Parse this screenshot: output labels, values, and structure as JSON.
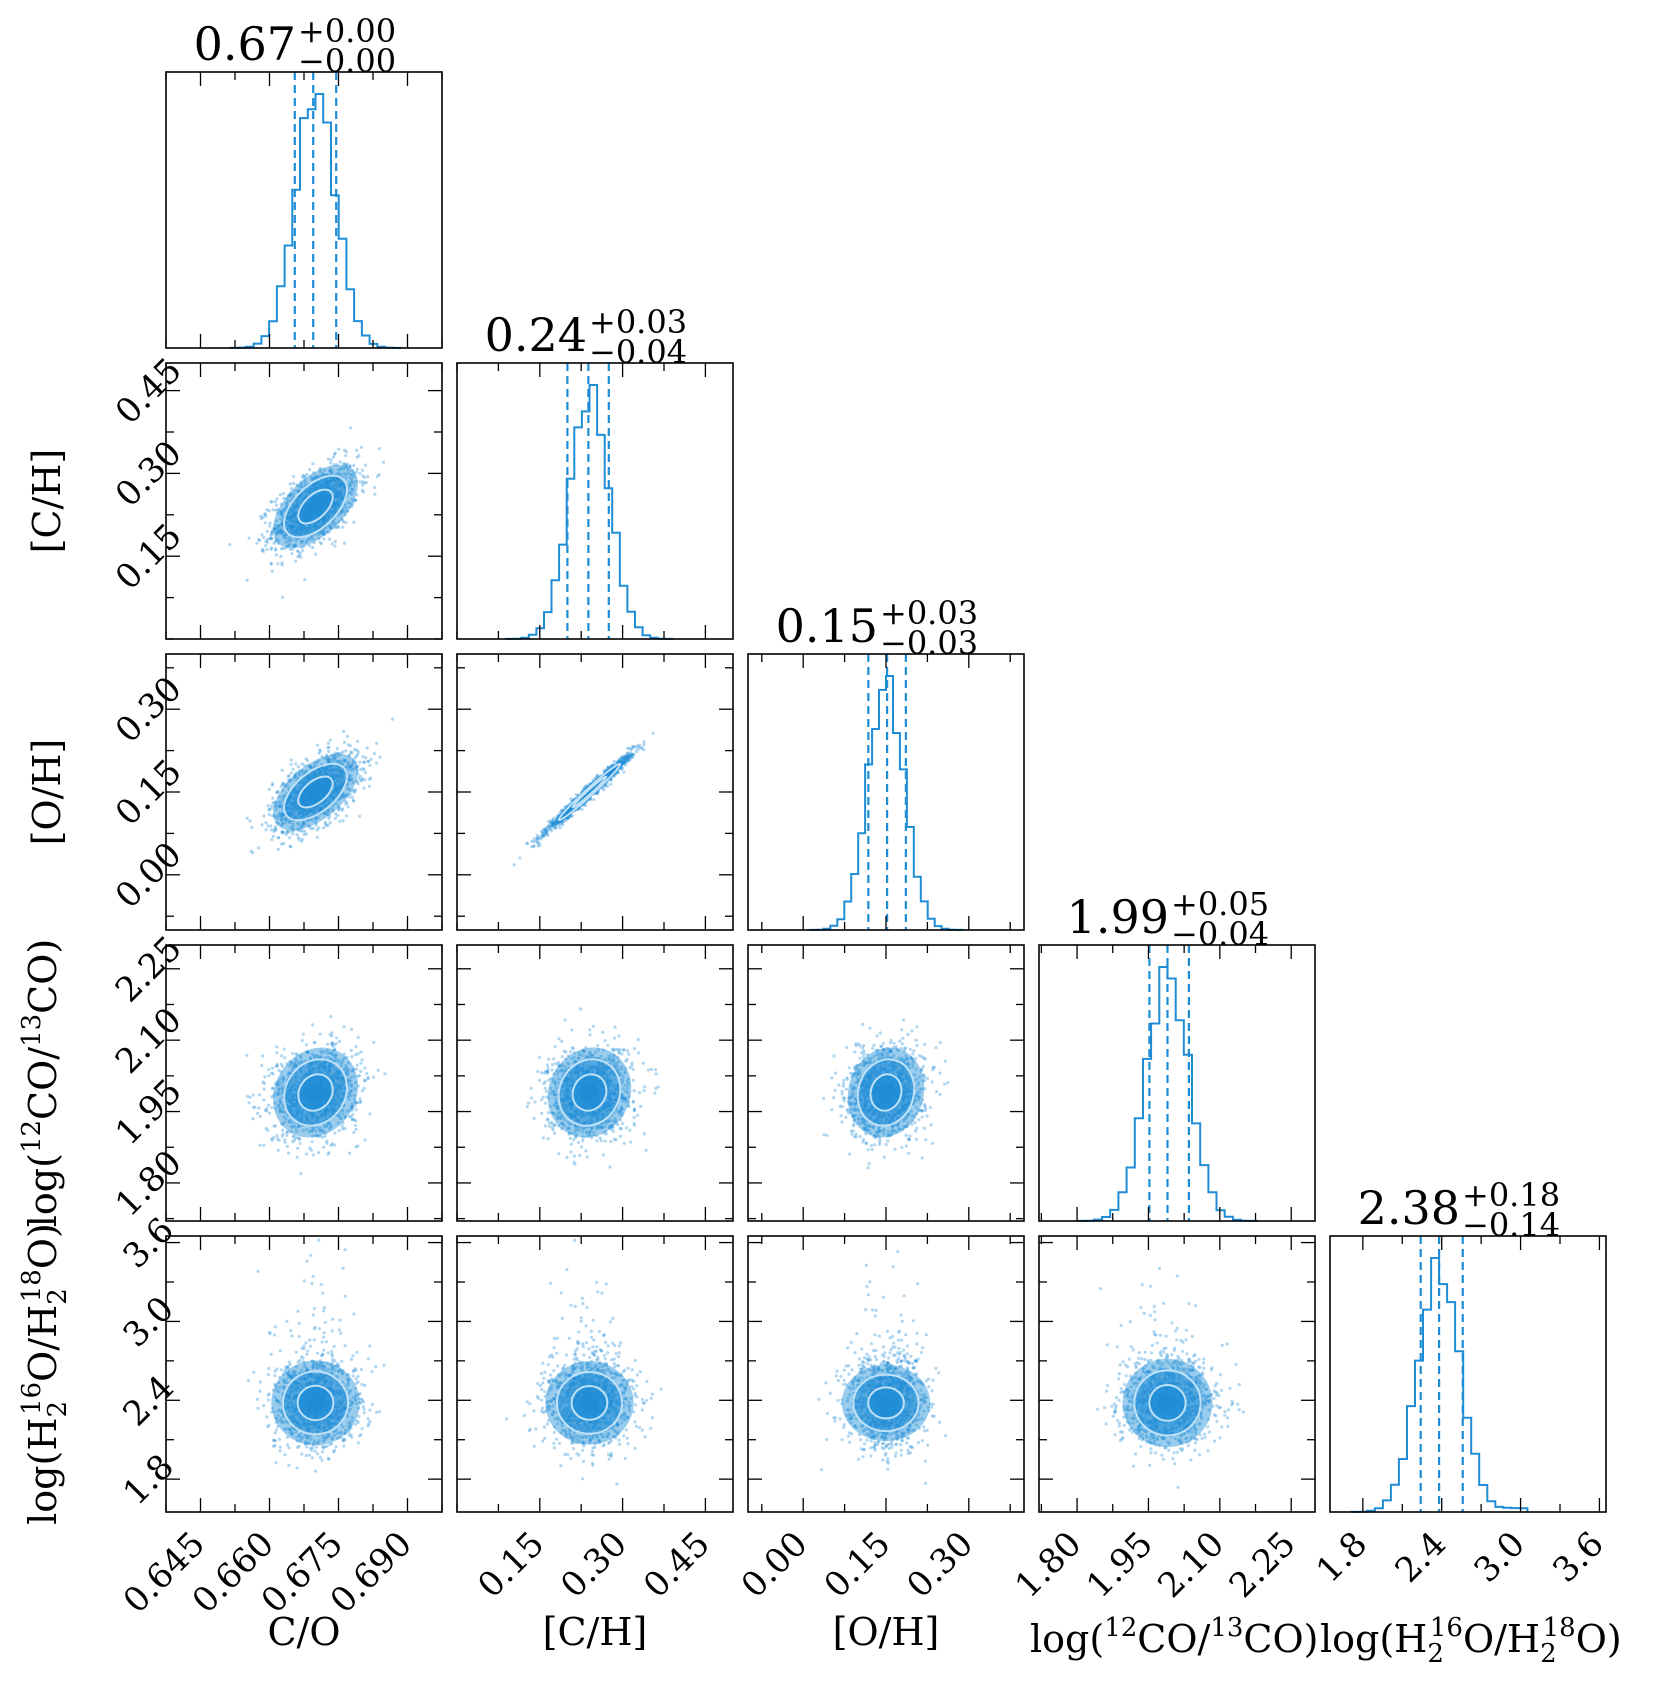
{
  "colors": {
    "accent": "#1f8dd6",
    "axis": "#000000"
  },
  "chart_data": {
    "type": "corner",
    "parameters": [
      {
        "name": "C/O",
        "label": "C/O",
        "median": 0.67,
        "plus": 0.0,
        "minus": 0.0,
        "title_main": "0.67",
        "title_plus": "+0.00",
        "title_minus": "−0.00",
        "range": [
          0.6375,
          0.6975
        ],
        "ticks": [
          0.645,
          0.66,
          0.675,
          0.69
        ],
        "tick_labels": [
          "0.645",
          "0.660",
          "0.675",
          "0.690"
        ],
        "quantiles": [
          0.6655,
          0.6695,
          0.6745
        ],
        "sd": 0.0044
      },
      {
        "name": "[C/H]",
        "label": "[C/H]",
        "median": 0.24,
        "plus": 0.03,
        "minus": 0.04,
        "title_main": "0.24",
        "title_plus": "+0.03",
        "title_minus": "−0.04",
        "range": [
          0.0,
          0.5
        ],
        "ticks": [
          0.15,
          0.3,
          0.45
        ],
        "tick_labels": [
          "0.15",
          "0.30",
          "0.45"
        ],
        "quantiles": [
          0.2,
          0.238,
          0.275
        ],
        "sd": 0.036
      },
      {
        "name": "[O/H]",
        "label": "[O/H]",
        "median": 0.15,
        "plus": 0.03,
        "minus": 0.03,
        "title_main": "0.15",
        "title_plus": "+0.03",
        "title_minus": "−0.03",
        "range": [
          -0.1,
          0.4
        ],
        "ticks": [
          0.0,
          0.15,
          0.3
        ],
        "tick_labels": [
          "0.00",
          "0.15",
          "0.30"
        ],
        "quantiles": [
          0.118,
          0.152,
          0.186
        ],
        "sd": 0.033
      },
      {
        "name": "log(12CO/13CO)",
        "label_prefix": "log(",
        "label_sup1": "12",
        "label_mid": "CO/",
        "label_sup2": "13",
        "label_suffix": "CO)",
        "median": 1.99,
        "plus": 0.05,
        "minus": 0.04,
        "title_main": "1.99",
        "title_plus": "+0.05",
        "title_minus": "−0.04",
        "range": [
          1.72,
          2.3
        ],
        "ticks": [
          1.8,
          1.95,
          2.1,
          2.25
        ],
        "tick_labels": [
          "1.80",
          "1.95",
          "2.10",
          "2.25"
        ],
        "quantiles": [
          1.952,
          1.99,
          2.035
        ],
        "sd": 0.045
      },
      {
        "name": "log(H2 16O/H2 18O)",
        "label_prefix": "log(H",
        "label_sub": "2",
        "label_sup1": "16",
        "label_mid": "O/H",
        "label_sub2": "2",
        "label_sup2": "18",
        "label_suffix": "O)",
        "median": 2.38,
        "plus": 0.18,
        "minus": 0.14,
        "title_main": "2.38",
        "title_plus": "+0.18",
        "title_minus": "−0.14",
        "range": [
          1.55,
          3.65
        ],
        "ticks": [
          1.8,
          2.4,
          3.0,
          3.6
        ],
        "tick_labels": [
          "1.8",
          "2.4",
          "3.0",
          "3.6"
        ],
        "quantiles": [
          2.24,
          2.38,
          2.56
        ],
        "sd": 0.16
      }
    ],
    "correlations": {
      "1_0": 0.55,
      "2_0": 0.55,
      "2_1": 0.985,
      "3_0": 0.15,
      "3_1": 0.1,
      "3_2": 0.1,
      "4_0": 0.0,
      "4_1": 0.0,
      "4_2": 0.0,
      "4_3": 0.0
    }
  }
}
